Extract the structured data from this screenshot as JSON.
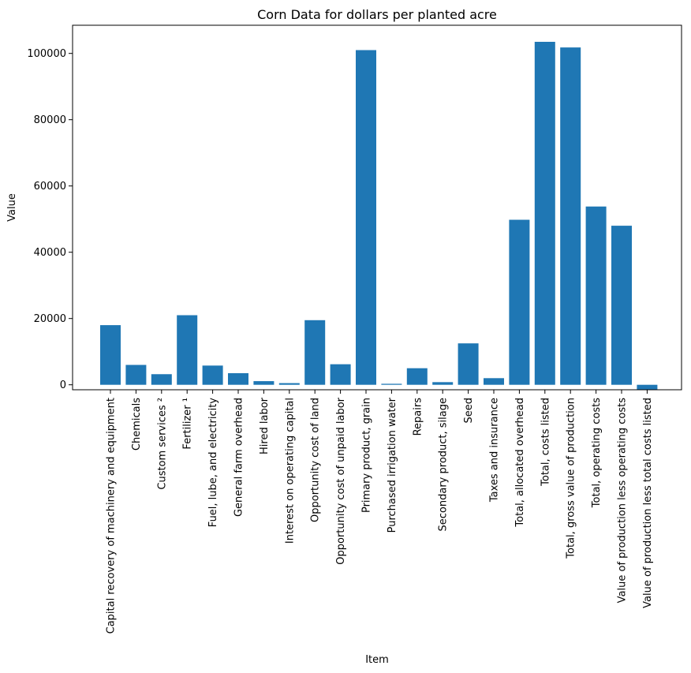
{
  "chart_data": {
    "type": "bar",
    "title": "Corn Data for dollars per planted acre",
    "xlabel": "Item",
    "ylabel": "Value",
    "ylim": [
      -1500,
      108500
    ],
    "yticks": [
      0,
      20000,
      40000,
      60000,
      80000,
      100000
    ],
    "grid": false,
    "bar_color": "#1f77b4",
    "categories": [
      "Capital recovery of machinery and equipment",
      "Chemicals",
      "Custom services ²",
      "Fertilizer ¹",
      "Fuel, lube, and electricity",
      "General farm overhead",
      "Hired labor",
      "Interest on operating capital",
      "Opportunity cost of land",
      "Opportunity cost of unpaid labor",
      "Primary product, grain",
      "Purchased irrigation water",
      "Repairs",
      "Secondary product, silage",
      "Seed",
      "Taxes and insurance",
      "Total, allocated overhead",
      "Total, costs listed",
      "Total, gross value of production",
      "Total, operating costs",
      "Value of production less operating costs",
      "Value of production less total costs listed"
    ],
    "values": [
      18000,
      6000,
      3200,
      21000,
      5800,
      3500,
      1100,
      500,
      19500,
      6200,
      101000,
      300,
      5000,
      800,
      12500,
      2000,
      49800,
      103500,
      101800,
      53800,
      48000,
      -1500
    ]
  }
}
